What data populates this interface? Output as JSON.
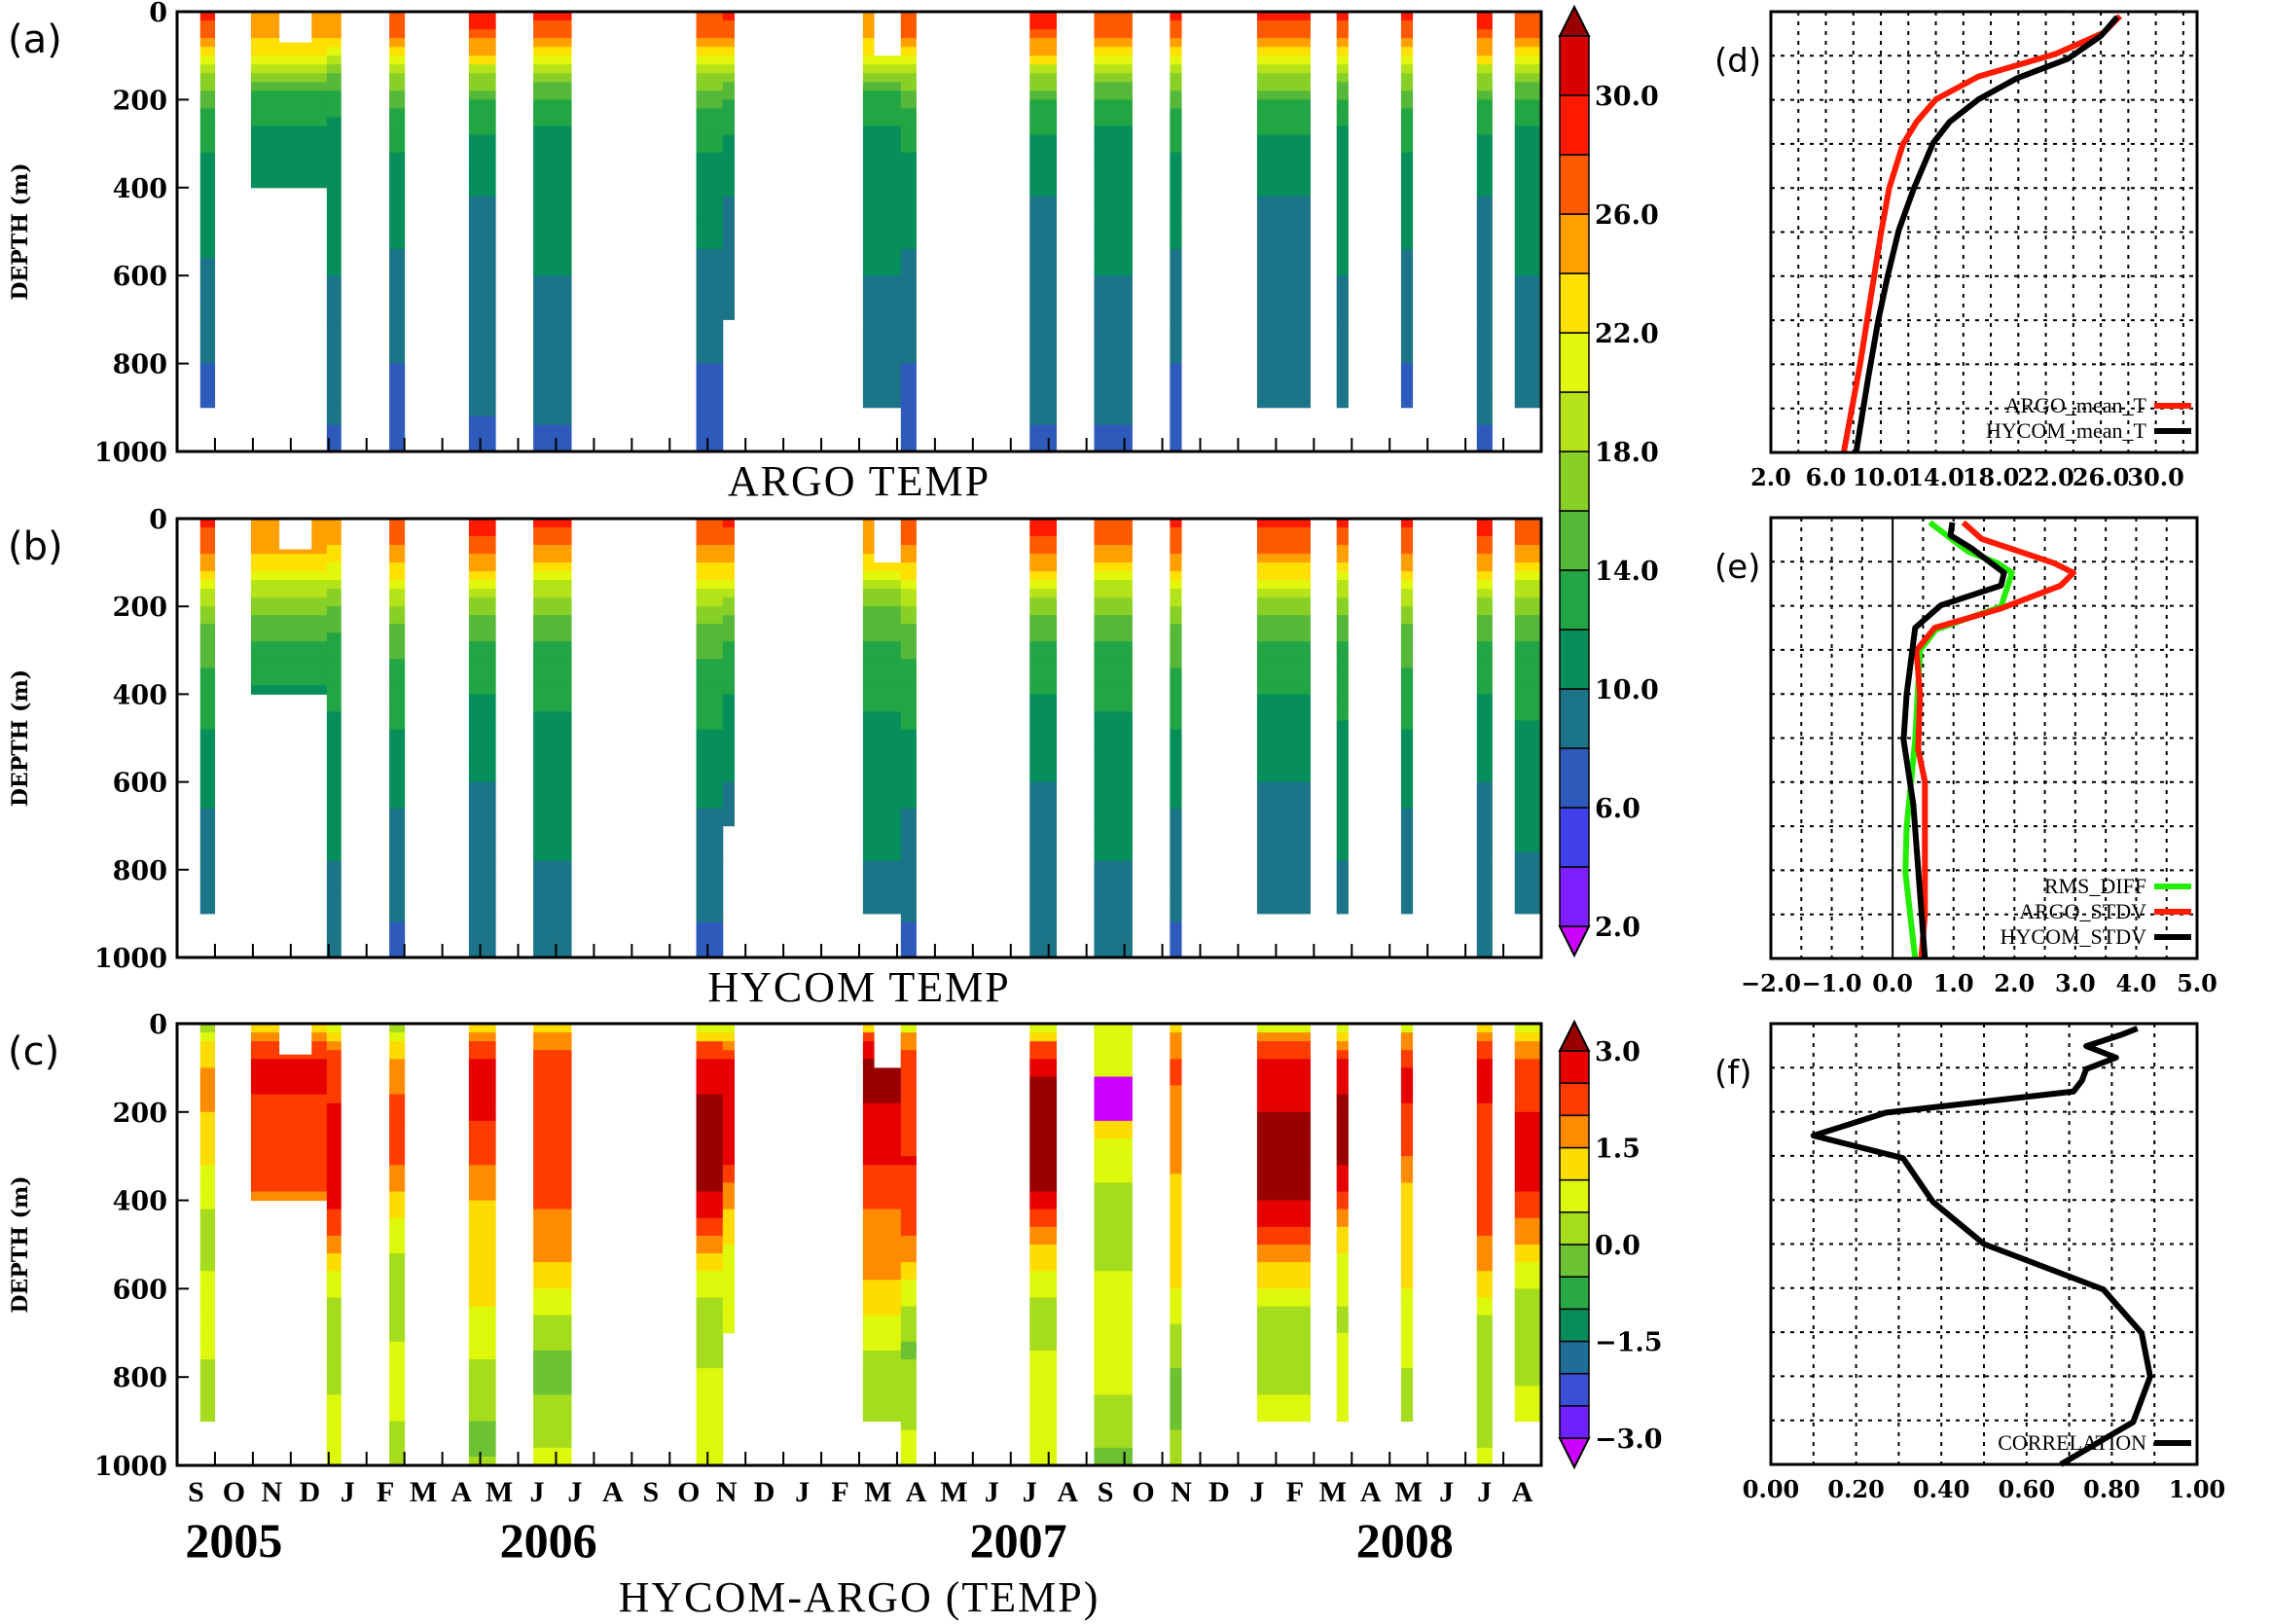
{
  "chart_data": [
    {
      "id": "a",
      "type": "heatmap",
      "panel_label": "(a)",
      "title": "ARGO TEMP",
      "ylabel": "DEPTH (m)",
      "ylim": [
        1000,
        0
      ],
      "yticks": [
        "0",
        "200",
        "400",
        "600",
        "800",
        "1000"
      ],
      "field": "temp",
      "source": "argo"
    },
    {
      "id": "b",
      "type": "heatmap",
      "panel_label": "(b)",
      "title": "HYCOM TEMP",
      "ylabel": "DEPTH (m)",
      "ylim": [
        1000,
        0
      ],
      "yticks": [
        "0",
        "200",
        "400",
        "600",
        "800",
        "1000"
      ],
      "field": "temp",
      "source": "hycom"
    },
    {
      "id": "c",
      "type": "heatmap",
      "panel_label": "(c)",
      "title": "HYCOM-ARGO (TEMP)",
      "ylabel": "DEPTH (m)",
      "ylim": [
        1000,
        0
      ],
      "yticks": [
        "0",
        "200",
        "400",
        "600",
        "800",
        "1000"
      ],
      "field": "diff"
    },
    {
      "id": "d",
      "type": "line",
      "panel_label": "(d)",
      "xlim": [
        2,
        33
      ],
      "ylim": [
        1000,
        0
      ],
      "xticks": [
        "2.0",
        "6.0",
        "10.0",
        "14.0",
        "18.0",
        "22.0",
        "26.0",
        "30.0"
      ],
      "xtick_values": [
        2,
        6,
        10,
        14,
        18,
        22,
        26,
        30
      ],
      "grid_x_step": 2,
      "grid_y_step": 100,
      "legend": "bottom-right",
      "series": [
        {
          "name": "ARGO_mean_T",
          "color": "#ff1a00",
          "points": [
            [
              27.4,
              10
            ],
            [
              26.2,
              48
            ],
            [
              22.7,
              96
            ],
            [
              17.1,
              147
            ],
            [
              14.0,
              199
            ],
            [
              12.6,
              250
            ],
            [
              11.6,
              301
            ],
            [
              10.6,
              401
            ],
            [
              10.0,
              504
            ],
            [
              8.5,
              798
            ],
            [
              7.3,
              1000
            ]
          ]
        },
        {
          "name": "HYCOM_mean_T",
          "color": "#000000",
          "points": [
            [
              27.2,
              12
            ],
            [
              26.0,
              55
            ],
            [
              23.6,
              107
            ],
            [
              19.9,
              151
            ],
            [
              17.1,
              199
            ],
            [
              15.0,
              250
            ],
            [
              13.8,
              298
            ],
            [
              12.4,
              401
            ],
            [
              11.3,
              496
            ],
            [
              10.5,
              599
            ],
            [
              9.8,
              702
            ],
            [
              9.1,
              827
            ],
            [
              8.2,
              1000
            ]
          ]
        }
      ]
    },
    {
      "id": "e",
      "type": "line",
      "panel_label": "(e)",
      "xlim": [
        -2,
        5
      ],
      "ylim": [
        1000,
        0
      ],
      "xticks": [
        "−2.0",
        "−1.0",
        "0.0",
        "1.0",
        "2.0",
        "3.0",
        "4.0",
        "5.0"
      ],
      "xtick_values": [
        -2,
        -1,
        0,
        1,
        2,
        3,
        4,
        5
      ],
      "grid_x_step": 0.5,
      "grid_y_step": 100,
      "legend": "bottom-right",
      "series": [
        {
          "name": "RMS_DIFF",
          "color": "#22ee00",
          "points": [
            [
              0.61,
              11
            ],
            [
              1.24,
              77
            ],
            [
              1.72,
              103
            ],
            [
              1.96,
              125
            ],
            [
              1.78,
              202
            ],
            [
              0.71,
              254
            ],
            [
              0.45,
              301
            ],
            [
              0.37,
              504
            ],
            [
              0.23,
              702
            ],
            [
              0.21,
              805
            ],
            [
              0.37,
              1000
            ]
          ]
        },
        {
          "name": "ARGO_STDV",
          "color": "#ff1a00",
          "points": [
            [
              1.16,
              11
            ],
            [
              1.46,
              48
            ],
            [
              2.65,
              103
            ],
            [
              2.97,
              125
            ],
            [
              2.76,
              154
            ],
            [
              1.78,
              206
            ],
            [
              0.69,
              250
            ],
            [
              0.39,
              301
            ],
            [
              0.45,
              401
            ],
            [
              0.42,
              526
            ],
            [
              0.53,
              599
            ],
            [
              0.53,
              901
            ],
            [
              0.47,
              1000
            ]
          ]
        },
        {
          "name": "HYCOM_STDV",
          "color": "#000000",
          "points": [
            [
              0.98,
              11
            ],
            [
              0.95,
              40
            ],
            [
              1.3,
              70
            ],
            [
              1.83,
              125
            ],
            [
              1.78,
              154
            ],
            [
              0.79,
              199
            ],
            [
              0.37,
              250
            ],
            [
              0.23,
              401
            ],
            [
              0.18,
              504
            ],
            [
              0.34,
              651
            ],
            [
              0.53,
              1000
            ]
          ]
        }
      ]
    },
    {
      "id": "f",
      "type": "line",
      "panel_label": "(f)",
      "xlim": [
        0,
        1
      ],
      "ylim": [
        1000,
        0
      ],
      "xticks": [
        "0.00",
        "0.20",
        "0.40",
        "0.60",
        "0.80",
        "1.00"
      ],
      "xtick_values": [
        0,
        0.2,
        0.4,
        0.6,
        0.8,
        1.0
      ],
      "grid_x_step": 0.1,
      "grid_y_step": 100,
      "legend": "bottom-right",
      "series": [
        {
          "name": "CORRELATION",
          "color": "#000000",
          "points": [
            [
              0.86,
              11
            ],
            [
              0.82,
              26
            ],
            [
              0.74,
              51
            ],
            [
              0.81,
              77
            ],
            [
              0.74,
              103
            ],
            [
              0.73,
              129
            ],
            [
              0.71,
              154
            ],
            [
              0.27,
              202
            ],
            [
              0.1,
              254
            ],
            [
              0.31,
              305
            ],
            [
              0.38,
              404
            ],
            [
              0.5,
              500
            ],
            [
              0.78,
              603
            ],
            [
              0.87,
              702
            ],
            [
              0.89,
              801
            ],
            [
              0.85,
              904
            ],
            [
              0.68,
              1000
            ]
          ]
        }
      ]
    }
  ],
  "time_axis": {
    "months": [
      "S",
      "O",
      "N",
      "D",
      "J",
      "F",
      "M",
      "A",
      "M",
      "J",
      "J",
      "A",
      "S",
      "O",
      "N",
      "D",
      "J",
      "F",
      "M",
      "A",
      "M",
      "J",
      "J",
      "A",
      "S",
      "O",
      "N",
      "D",
      "J",
      "F",
      "M",
      "A",
      "M",
      "J",
      "J",
      "A"
    ],
    "years": [
      {
        "label": "2005",
        "month": 1.5
      },
      {
        "label": "2006",
        "month": 9.8
      },
      {
        "label": "2007",
        "month": 22.2
      },
      {
        "label": "2008",
        "month": 32.4
      }
    ]
  },
  "profiles": [
    {
      "start": 0.61,
      "end": 0.99,
      "bottom": 900,
      "surf_offset": 1.0,
      "diff_peak": 1.2
    },
    {
      "start": 1.95,
      "end": 3.95,
      "bottom": 400,
      "surf_offset": -3.0,
      "diff_peak": 2.6,
      "top_gap": {
        "start": 2.7,
        "end": 3.55,
        "depth": 70
      }
    },
    {
      "start": 3.95,
      "end": 4.32,
      "bottom": 1000,
      "surf_offset": -2.0,
      "diff_peak": 2.8
    },
    {
      "start": 5.6,
      "end": 6.0,
      "bottom": 1000,
      "surf_offset": 0.5,
      "diff_peak": 1.8
    },
    {
      "start": 7.7,
      "end": 8.4,
      "bottom": 1000,
      "surf_offset": 1.5,
      "diff_peak": 2.4
    },
    {
      "start": 9.4,
      "end": 10.4,
      "bottom": 1000,
      "surf_offset": 1.5,
      "diff_peak": 2.4
    },
    {
      "start": 13.7,
      "end": 14.4,
      "bottom": 1000,
      "surf_offset": 0.5,
      "diff_peak": 3.2
    },
    {
      "start": 14.4,
      "end": 14.7,
      "bottom": 700,
      "surf_offset": 0.5,
      "diff_peak": 2.5
    },
    {
      "start": 18.1,
      "end": 19.1,
      "bottom": 900,
      "surf_offset": -1.0,
      "diff_peak": 3.0,
      "top_gap": {
        "start": 18.4,
        "end": 19.1,
        "depth": 100
      }
    },
    {
      "start": 19.1,
      "end": 19.5,
      "bottom": 1000,
      "surf_offset": 0.0,
      "diff_peak": 2.6
    },
    {
      "start": 22.5,
      "end": 23.2,
      "bottom": 1000,
      "surf_offset": 1.5,
      "diff_peak": 3.2
    },
    {
      "start": 24.2,
      "end": 25.2,
      "bottom": 1000,
      "surf_offset": 1.0,
      "diff_peak": -3.4
    },
    {
      "start": 26.2,
      "end": 26.5,
      "bottom": 1000,
      "surf_offset": 1.0,
      "diff_peak": 2.0
    },
    {
      "start": 28.5,
      "end": 29.9,
      "bottom": 900,
      "surf_offset": 1.0,
      "diff_peak": 3.3
    },
    {
      "start": 30.6,
      "end": 30.9,
      "bottom": 900,
      "surf_offset": 1.5,
      "diff_peak": 2.8
    },
    {
      "start": 32.3,
      "end": 32.6,
      "bottom": 900,
      "surf_offset": 1.0,
      "diff_peak": 2.2
    },
    {
      "start": 34.3,
      "end": 34.7,
      "bottom": 1000,
      "surf_offset": 1.5,
      "diff_peak": 2.8
    },
    {
      "start": 35.3,
      "end": 36.0,
      "bottom": 900,
      "surf_offset": 1.0,
      "diff_peak": 2.6
    }
  ],
  "colorbars": {
    "temp": {
      "labels": [
        "2.0",
        "6.0",
        "10.0",
        "14.0",
        "18.0",
        "22.0",
        "26.0",
        "30.0"
      ],
      "label_values": [
        2,
        6,
        10,
        14,
        18,
        22,
        26,
        30
      ],
      "min": 2,
      "step": 2,
      "colors": [
        "#7f1fff",
        "#4040e8",
        "#2e5bbb",
        "#1c7489",
        "#078f5b",
        "#22a544",
        "#55b838",
        "#88d026",
        "#b5e31a",
        "#e2f70c",
        "#ffe000",
        "#ff9f00",
        "#ff5a00",
        "#ff1a00",
        "#d80000"
      ],
      "under": "#cc00ff",
      "over": "#990000"
    },
    "diff": {
      "labels": [
        "−3.0",
        "−1.5",
        "0.0",
        "1.5",
        "3.0"
      ],
      "label_values": [
        -3,
        -1.5,
        0,
        1.5,
        3
      ],
      "min": -3,
      "step": 0.5,
      "colors": [
        "#7020ff",
        "#3a4ed6",
        "#1e6e99",
        "#078c5c",
        "#2aa845",
        "#6cc233",
        "#a6dc1e",
        "#def80c",
        "#ffdc00",
        "#ff8c00",
        "#ff3c00",
        "#e60000"
      ],
      "under": "#cc00ff",
      "over": "#990000"
    }
  }
}
